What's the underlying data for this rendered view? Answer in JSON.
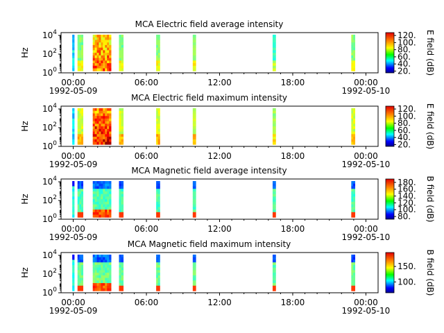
{
  "chart_data": [
    {
      "type": "heatmap",
      "title": "MCA  Electric field average intensity",
      "ylabel": "Hz",
      "y_scale": "log",
      "ylim_hz": [
        1,
        20000
      ],
      "y_tick_labels": [
        {
          "base": "10",
          "exp": "0"
        },
        {
          "base": "10",
          "exp": "2"
        },
        {
          "base": "10",
          "exp": "4"
        }
      ],
      "x_tick_labels": [
        "00:00",
        "06:00",
        "12:00",
        "18:00",
        "00:00"
      ],
      "x_date_labels": [
        "1992-05-09",
        "1992-05-10"
      ],
      "xlim_hours": [
        -1,
        25
      ],
      "colorbar": {
        "label": "E field (dB)",
        "min": 15,
        "max": 128,
        "ticks": [
          "20.",
          "40.",
          "60.",
          "80.",
          "100.",
          "120."
        ]
      },
      "passes": [
        {
          "start_h": -0.08,
          "end_h": 0.08,
          "level": 0.45,
          "style": "thin"
        },
        {
          "start_h": 0.35,
          "end_h": 0.8,
          "level": 0.5,
          "style": "band"
        },
        {
          "start_h": 1.6,
          "end_h": 3.1,
          "level": 0.62,
          "style": "active"
        },
        {
          "start_h": 3.75,
          "end_h": 4.1,
          "level": 0.5,
          "style": "band"
        },
        {
          "start_h": 6.8,
          "end_h": 7.1,
          "level": 0.5,
          "style": "band"
        },
        {
          "start_h": 9.8,
          "end_h": 10.05,
          "level": 0.5,
          "style": "band"
        },
        {
          "start_h": 16.35,
          "end_h": 16.6,
          "level": 0.45,
          "style": "band"
        },
        {
          "start_h": 22.8,
          "end_h": 23.1,
          "level": 0.5,
          "style": "band"
        }
      ]
    },
    {
      "type": "heatmap",
      "title": "MCA  Electric field maximum intensity",
      "ylabel": "Hz",
      "y_scale": "log",
      "ylim_hz": [
        1,
        20000
      ],
      "y_tick_labels": [
        {
          "base": "10",
          "exp": "0"
        },
        {
          "base": "10",
          "exp": "2"
        },
        {
          "base": "10",
          "exp": "4"
        }
      ],
      "x_tick_labels": [
        "00:00",
        "06:00",
        "12:00",
        "18:00",
        "00:00"
      ],
      "x_date_labels": [
        "1992-05-09",
        "1992-05-10"
      ],
      "xlim_hours": [
        -1,
        25
      ],
      "colorbar": {
        "label": "E field (dB)",
        "min": 15,
        "max": 128,
        "ticks": [
          "20.",
          "40.",
          "60.",
          "80.",
          "100.",
          "120."
        ]
      },
      "passes": [
        {
          "start_h": -0.08,
          "end_h": 0.08,
          "level": 0.5,
          "style": "thin"
        },
        {
          "start_h": 0.35,
          "end_h": 0.8,
          "level": 0.58,
          "style": "band"
        },
        {
          "start_h": 1.6,
          "end_h": 3.1,
          "level": 0.72,
          "style": "active"
        },
        {
          "start_h": 3.75,
          "end_h": 4.1,
          "level": 0.58,
          "style": "band"
        },
        {
          "start_h": 6.8,
          "end_h": 7.1,
          "level": 0.58,
          "style": "band"
        },
        {
          "start_h": 9.8,
          "end_h": 10.05,
          "level": 0.58,
          "style": "band"
        },
        {
          "start_h": 16.35,
          "end_h": 16.6,
          "level": 0.52,
          "style": "band"
        },
        {
          "start_h": 22.8,
          "end_h": 23.1,
          "level": 0.58,
          "style": "band"
        }
      ]
    },
    {
      "type": "heatmap",
      "title": "MCA  Magnetic field average intensity",
      "ylabel": "Hz",
      "y_scale": "log",
      "ylim_hz": [
        1,
        20000
      ],
      "y_tick_labels": [
        {
          "base": "10",
          "exp": "0"
        },
        {
          "base": "10",
          "exp": "2"
        },
        {
          "base": "10",
          "exp": "4"
        }
      ],
      "x_tick_labels": [
        "00:00",
        "06:00",
        "12:00",
        "18:00",
        "00:00"
      ],
      "x_date_labels": [
        "1992-05-09",
        "1992-05-10"
      ],
      "xlim_hours": [
        -1,
        25
      ],
      "colorbar": {
        "label": "B field (dB)",
        "min": 72,
        "max": 190,
        "ticks": [
          "80.",
          "100.",
          "120.",
          "140.",
          "160.",
          "180."
        ]
      },
      "passes": [
        {
          "start_h": -0.08,
          "end_h": 0.08,
          "level": 0.45,
          "style": "mag-thin"
        },
        {
          "start_h": 0.35,
          "end_h": 0.8,
          "level": 0.45,
          "style": "mag"
        },
        {
          "start_h": 1.6,
          "end_h": 3.1,
          "level": 0.45,
          "style": "mag-active"
        },
        {
          "start_h": 3.75,
          "end_h": 4.1,
          "level": 0.45,
          "style": "mag"
        },
        {
          "start_h": 6.8,
          "end_h": 7.1,
          "level": 0.45,
          "style": "mag"
        },
        {
          "start_h": 9.8,
          "end_h": 10.05,
          "level": 0.45,
          "style": "mag"
        },
        {
          "start_h": 16.35,
          "end_h": 16.6,
          "level": 0.45,
          "style": "mag"
        },
        {
          "start_h": 22.8,
          "end_h": 23.1,
          "level": 0.45,
          "style": "mag"
        }
      ]
    },
    {
      "type": "heatmap",
      "title": "MCA  Magnetic field maximum intensity",
      "ylabel": "Hz",
      "y_scale": "log",
      "ylim_hz": [
        1,
        20000
      ],
      "y_tick_labels": [
        {
          "base": "10",
          "exp": "0"
        },
        {
          "base": "10",
          "exp": "2"
        },
        {
          "base": "10",
          "exp": "4"
        }
      ],
      "x_tick_labels": [
        "00:00",
        "06:00",
        "12:00",
        "18:00",
        "00:00"
      ],
      "x_date_labels": [
        "1992-05-09",
        "1992-05-10"
      ],
      "xlim_hours": [
        -1,
        25
      ],
      "colorbar": {
        "label": "B field (dB)",
        "min": 65,
        "max": 195,
        "ticks": [
          "100.",
          "150."
        ]
      },
      "passes": [
        {
          "start_h": -0.08,
          "end_h": 0.08,
          "level": 0.48,
          "style": "mag-thin"
        },
        {
          "start_h": 0.35,
          "end_h": 0.8,
          "level": 0.48,
          "style": "mag"
        },
        {
          "start_h": 1.6,
          "end_h": 3.1,
          "level": 0.48,
          "style": "mag-active"
        },
        {
          "start_h": 3.75,
          "end_h": 4.1,
          "level": 0.48,
          "style": "mag"
        },
        {
          "start_h": 6.8,
          "end_h": 7.1,
          "level": 0.48,
          "style": "mag"
        },
        {
          "start_h": 9.8,
          "end_h": 10.05,
          "level": 0.48,
          "style": "mag"
        },
        {
          "start_h": 16.35,
          "end_h": 16.6,
          "level": 0.48,
          "style": "mag"
        },
        {
          "start_h": 22.8,
          "end_h": 23.1,
          "level": 0.48,
          "style": "mag"
        }
      ]
    }
  ]
}
